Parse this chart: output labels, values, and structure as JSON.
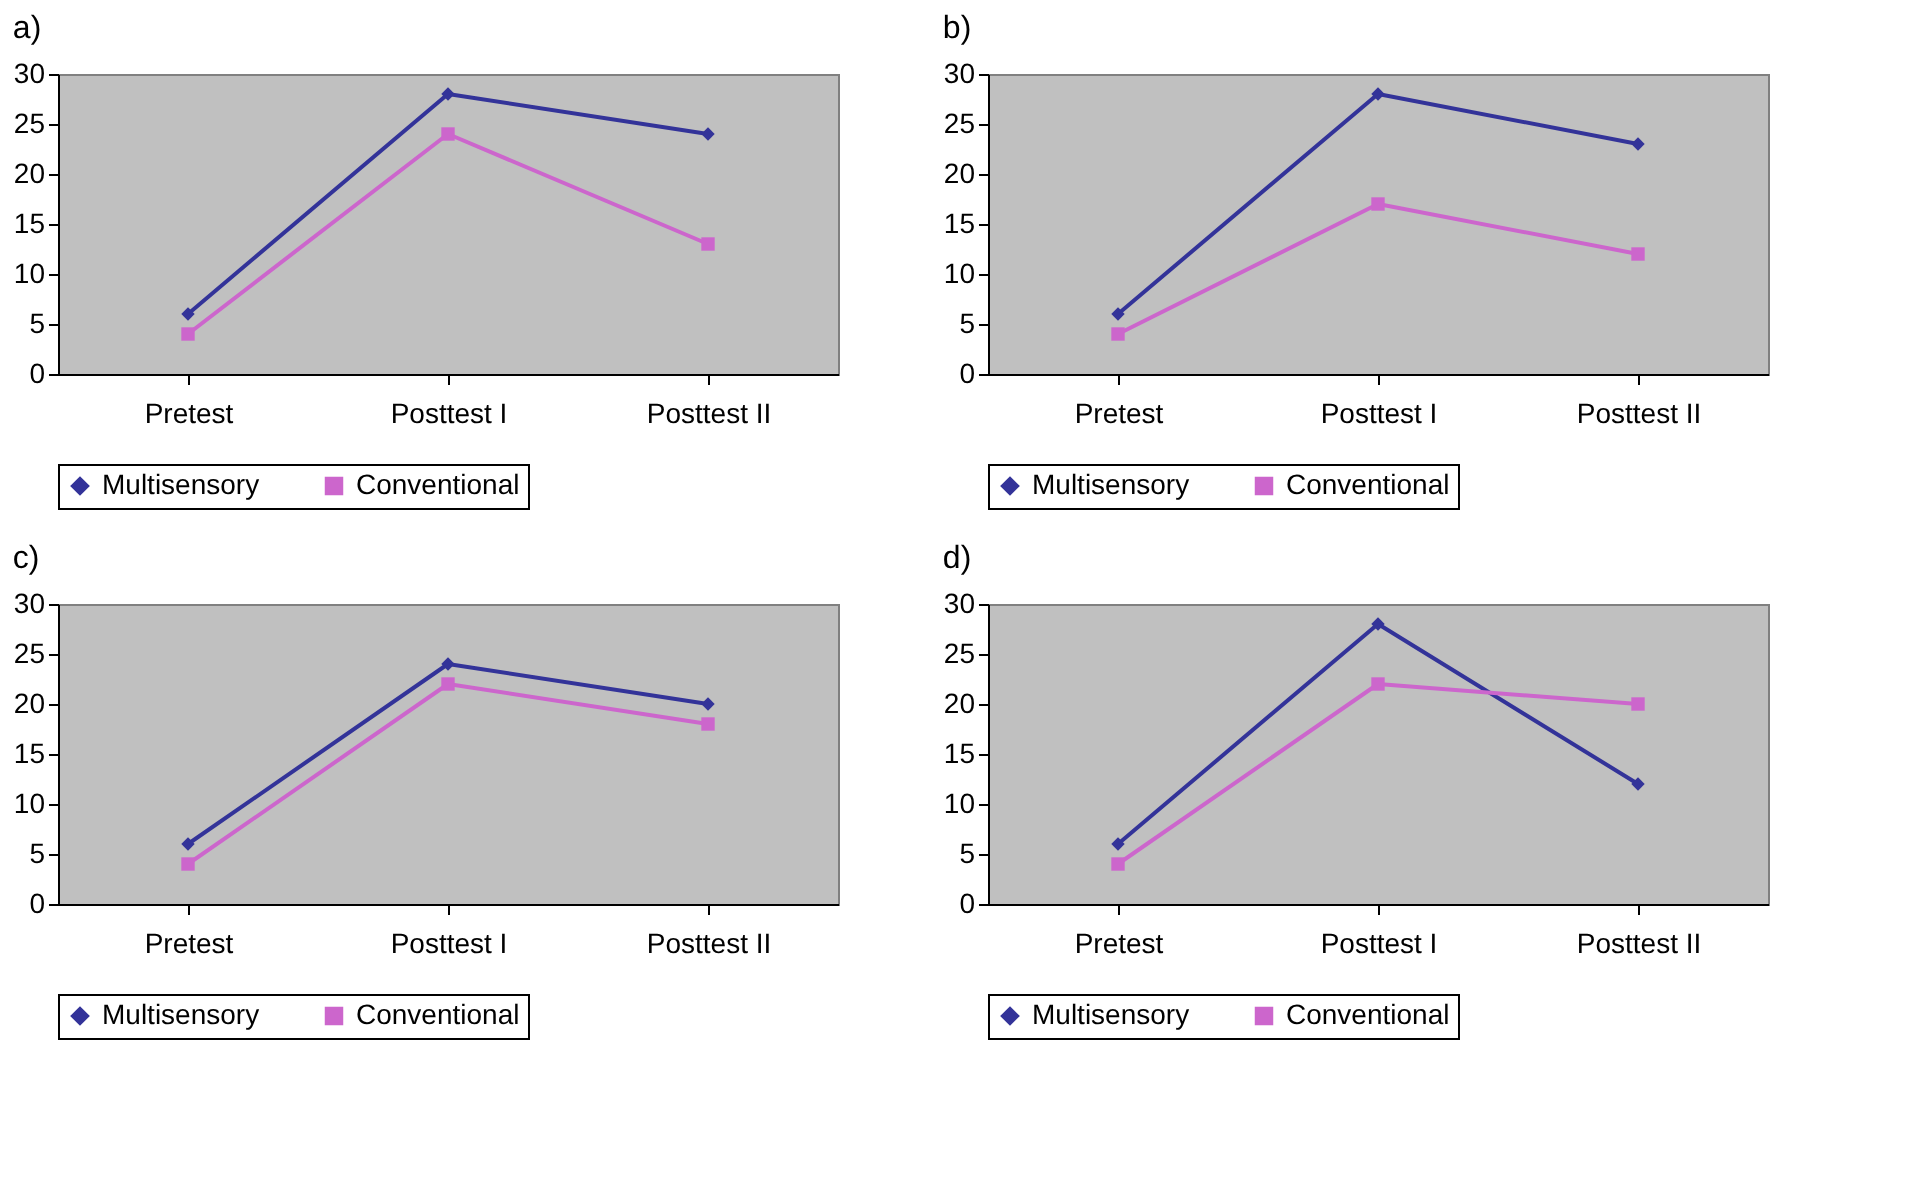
{
  "chart_data": [
    {
      "type": "line",
      "title": "a)",
      "categories": [
        "Pretest",
        "Posttest I",
        "Posttest II"
      ],
      "ylim": [
        0,
        30
      ],
      "yticks": [
        0,
        5,
        10,
        15,
        20,
        25,
        30
      ],
      "grid": false,
      "legend": "bottom",
      "series": [
        {
          "name": "Multisensory",
          "color": "#333399",
          "marker": "diamond",
          "values": [
            6,
            28,
            24
          ]
        },
        {
          "name": "Conventional",
          "color": "#cc66cc",
          "marker": "square",
          "values": [
            4,
            24,
            13
          ]
        }
      ]
    },
    {
      "type": "line",
      "title": "b)",
      "categories": [
        "Pretest",
        "Posttest I",
        "Posttest II"
      ],
      "ylim": [
        0,
        30
      ],
      "yticks": [
        0,
        5,
        10,
        15,
        20,
        25,
        30
      ],
      "grid": false,
      "legend": "bottom",
      "series": [
        {
          "name": "Multisensory",
          "color": "#333399",
          "marker": "diamond",
          "values": [
            6,
            28,
            23
          ]
        },
        {
          "name": "Conventional",
          "color": "#cc66cc",
          "marker": "square",
          "values": [
            4,
            17,
            12
          ]
        }
      ]
    },
    {
      "type": "line",
      "title": "c)",
      "categories": [
        "Pretest",
        "Posttest I",
        "Posttest II"
      ],
      "ylim": [
        0,
        30
      ],
      "yticks": [
        0,
        5,
        10,
        15,
        20,
        25,
        30
      ],
      "grid": false,
      "legend": "bottom",
      "series": [
        {
          "name": "Multisensory",
          "color": "#333399",
          "marker": "diamond",
          "values": [
            6,
            24,
            20
          ]
        },
        {
          "name": "Conventional",
          "color": "#cc66cc",
          "marker": "square",
          "values": [
            4,
            22,
            18
          ]
        }
      ]
    },
    {
      "type": "line",
      "title": "d)",
      "categories": [
        "Pretest",
        "Posttest I",
        "Posttest II"
      ],
      "ylim": [
        0,
        30
      ],
      "yticks": [
        0,
        5,
        10,
        15,
        20,
        25,
        30
      ],
      "grid": false,
      "legend": "bottom",
      "series": [
        {
          "name": "Multisensory",
          "color": "#333399",
          "marker": "diamond",
          "values": [
            6,
            28,
            12
          ]
        },
        {
          "name": "Conventional",
          "color": "#cc66cc",
          "marker": "square",
          "values": [
            4,
            22,
            20
          ]
        }
      ]
    }
  ]
}
